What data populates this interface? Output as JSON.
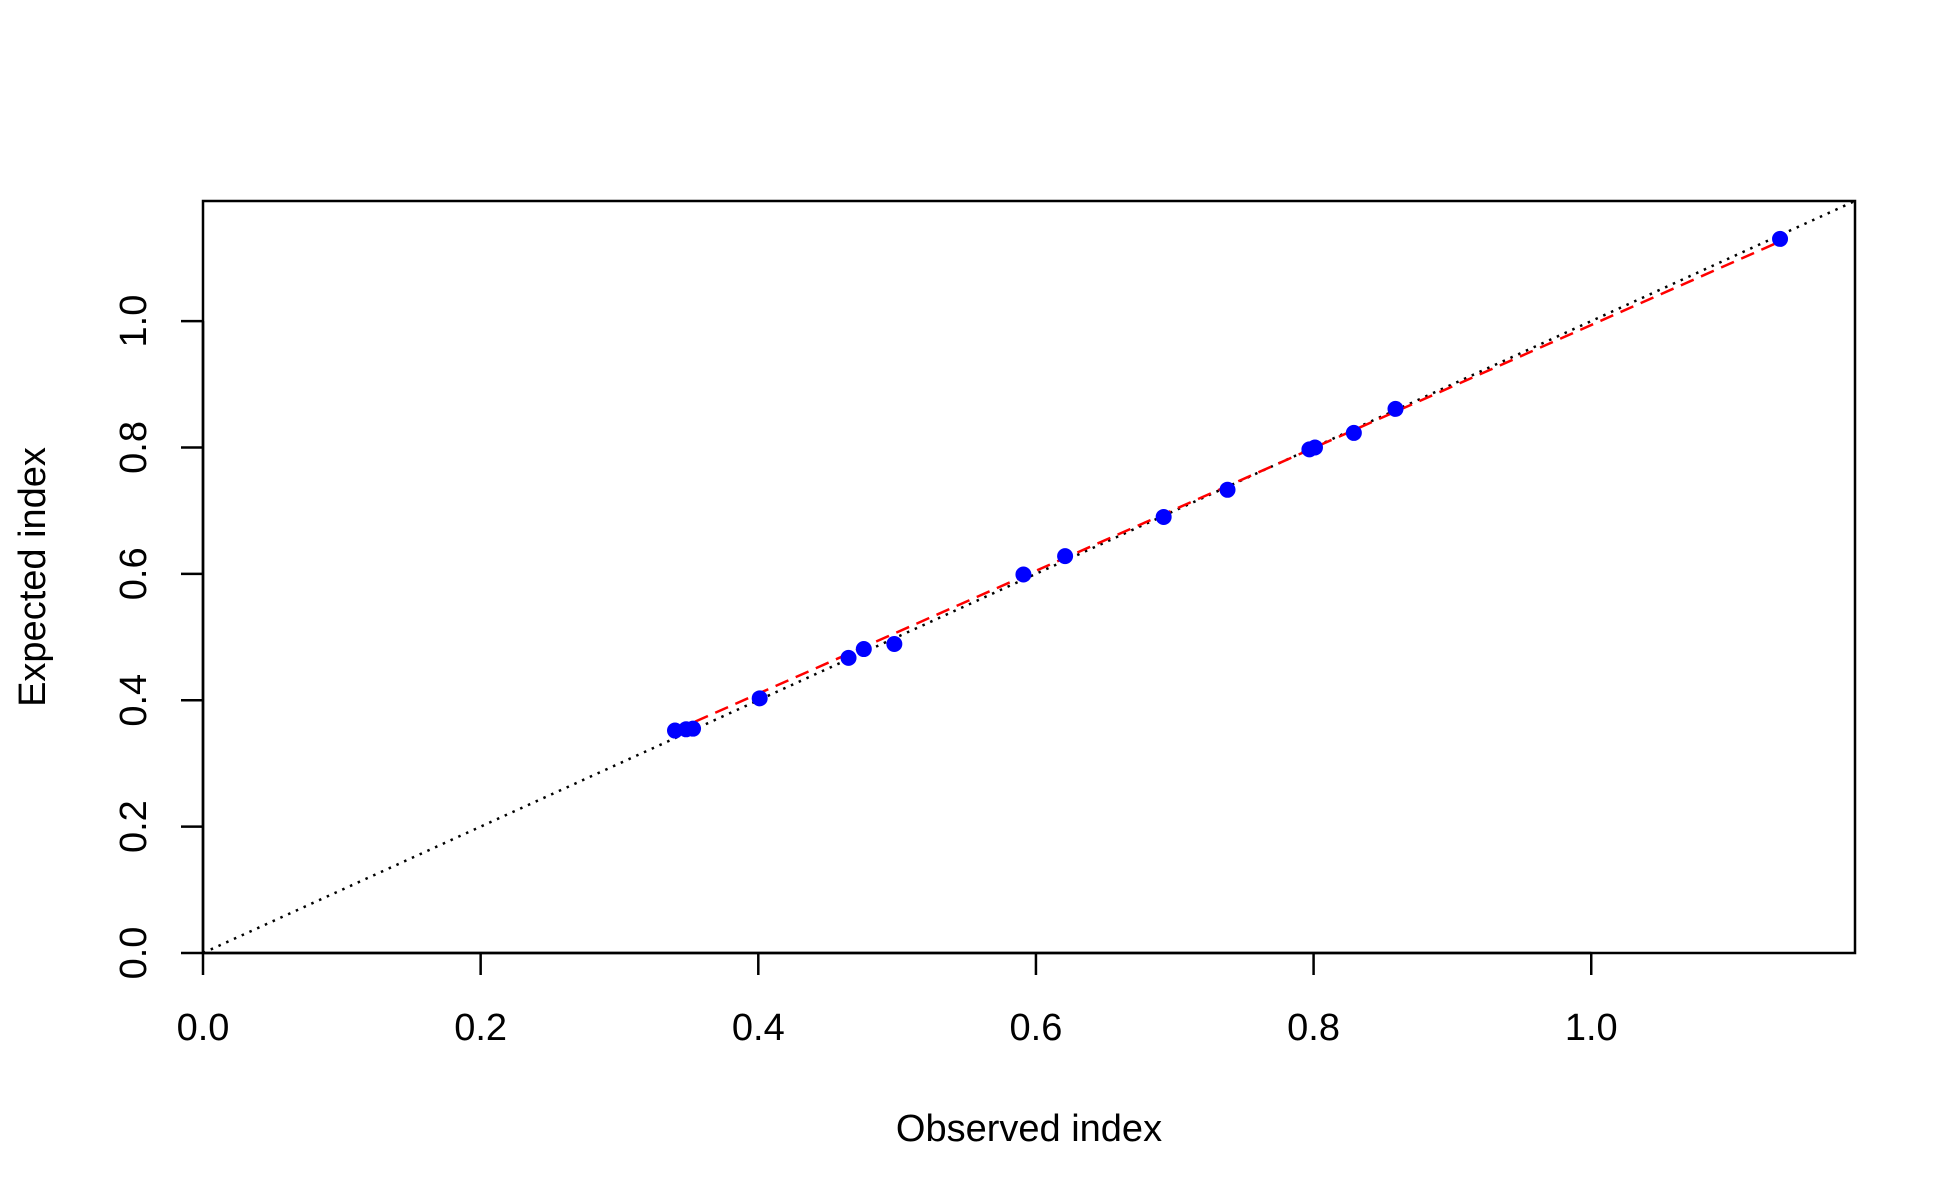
{
  "chart_data": {
    "type": "scatter",
    "title": "",
    "xlabel": "Observed index",
    "ylabel": "Expected index",
    "xlim": [
      0.0,
      1.19
    ],
    "ylim": [
      0.0,
      1.19
    ],
    "xticks": [
      "0.0",
      "0.2",
      "0.4",
      "0.6",
      "0.8",
      "1.0"
    ],
    "yticks": [
      "0.0",
      "0.2",
      "0.4",
      "0.6",
      "0.8",
      "1.0"
    ],
    "grid": false,
    "points": {
      "color": "#0000ff",
      "x": [
        0.34,
        0.348,
        0.353,
        0.401,
        0.465,
        0.476,
        0.498,
        0.591,
        0.621,
        0.692,
        0.738,
        0.797,
        0.801,
        0.829,
        0.859,
        1.136
      ],
      "y": [
        0.352,
        0.354,
        0.355,
        0.403,
        0.467,
        0.481,
        0.489,
        0.599,
        0.628,
        0.69,
        0.733,
        0.797,
        0.8,
        0.823,
        0.861,
        1.13
      ]
    },
    "reference_line": {
      "style": "dotted",
      "color": "#000000",
      "x": [
        0.0,
        1.19
      ],
      "y": [
        0.0,
        1.19
      ]
    },
    "fit_line": {
      "style": "dashed",
      "color": "#ff0000",
      "x": [
        0.34,
        1.136
      ],
      "y": [
        0.352,
        1.126
      ]
    }
  }
}
